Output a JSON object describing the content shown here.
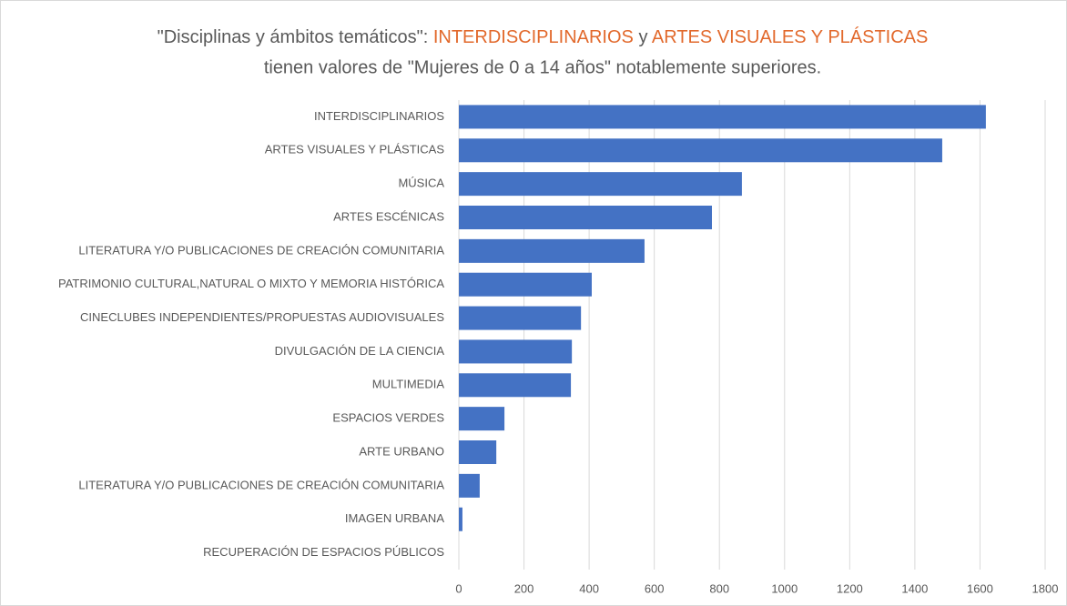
{
  "chart_data": {
    "type": "bar",
    "orientation": "horizontal",
    "title_parts": [
      "\"Disciplinas y ámbitos temáticos\":",
      "INTERDISCIPLINARIOS",
      "y",
      "ARTES VISUALES Y PLÁSTICAS"
    ],
    "title_highlight": [
      false,
      true,
      false,
      true
    ],
    "highlight_color": "#e2692c",
    "subtitle": "tienen valores de \"Mujeres de 0 a 14 años\" notablemente superiores.",
    "categories": [
      "INTERDISCIPLINARIOS",
      "ARTES VISUALES Y PLÁSTICAS",
      "MÚSICA",
      "ARTES ESCÉNICAS",
      "LITERATURA Y/O PUBLICACIONES DE CREACIÓN COMUNITARIA",
      "PATRIMONIO CULTURAL,NATURAL O MIXTO Y MEMORIA HISTÓRICA",
      "CINECLUBES INDEPENDIENTES/PROPUESTAS AUDIOVISUALES",
      "DIVULGACIÓN DE LA CIENCIA",
      "MULTIMEDIA",
      "ESPACIOS VERDES",
      "ARTE URBANO",
      "LITERATURA Y/O PUBLICACIONES DE CREACIÓN COMUNITARIA",
      "IMAGEN URBANA",
      "RECUPERACIÓN DE ESPACIOS PÚBLICOS"
    ],
    "values": [
      1618,
      1484,
      869,
      777,
      570,
      408,
      375,
      347,
      344,
      140,
      115,
      64,
      11,
      0
    ],
    "color": "#4472c4",
    "xlim": [
      0,
      1800
    ],
    "xticks": [
      0,
      200,
      400,
      600,
      800,
      1000,
      1200,
      1400,
      1600,
      1800
    ],
    "grid": true
  }
}
